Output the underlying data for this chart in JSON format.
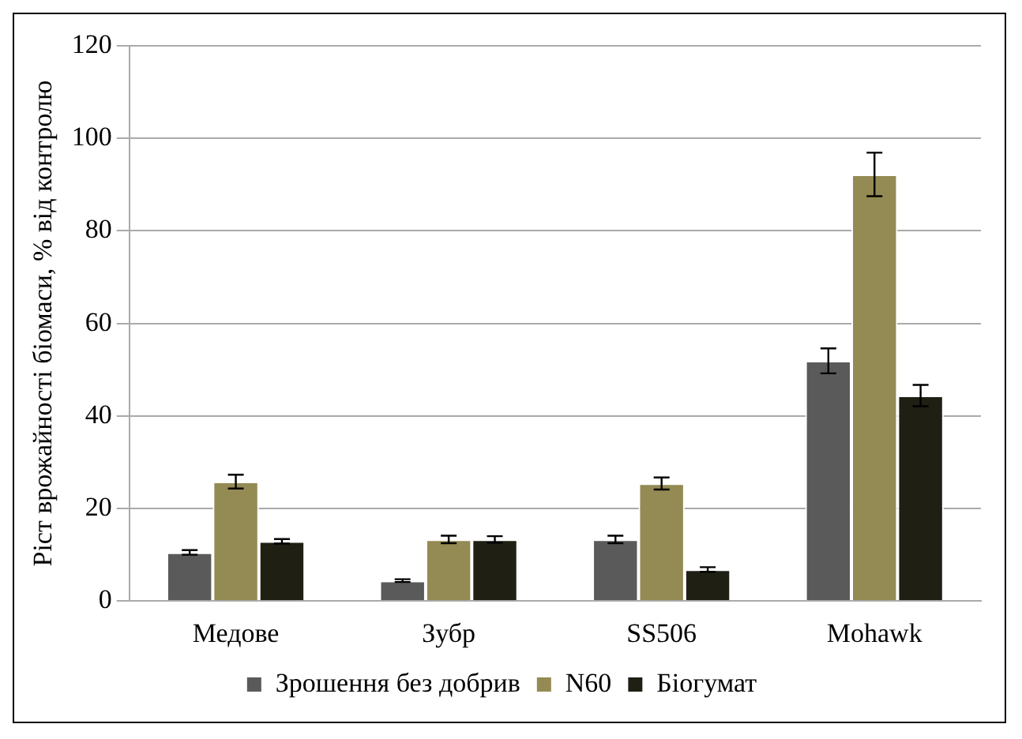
{
  "chart_data": {
    "type": "bar",
    "ylabel": "Ріст врожайності біомаси, % від контролю",
    "categories": [
      "Медове",
      "Зубр",
      "SS506",
      "Mohawk"
    ],
    "series": [
      {
        "name": "Зрошення без добрив",
        "color": "#5a5a5a",
        "values": [
          10.5,
          4.4,
          13.3,
          51.9
        ],
        "errors": [
          0.5,
          0.3,
          0.8,
          2.7
        ]
      },
      {
        "name": "N60",
        "color": "#948a54",
        "values": [
          25.8,
          13.3,
          25.4,
          92.2
        ],
        "errors": [
          1.5,
          0.8,
          1.3,
          4.7
        ]
      },
      {
        "name": "Біогумат",
        "color": "#1f1f14",
        "values": [
          12.9,
          13.3,
          6.8,
          44.4
        ],
        "errors": [
          0.5,
          0.7,
          0.5,
          2.3
        ]
      }
    ],
    "ylim": [
      0,
      120
    ],
    "yticks": [
      0,
      20,
      40,
      60,
      80,
      100,
      120
    ],
    "grid": "y",
    "legend": "bottom"
  }
}
